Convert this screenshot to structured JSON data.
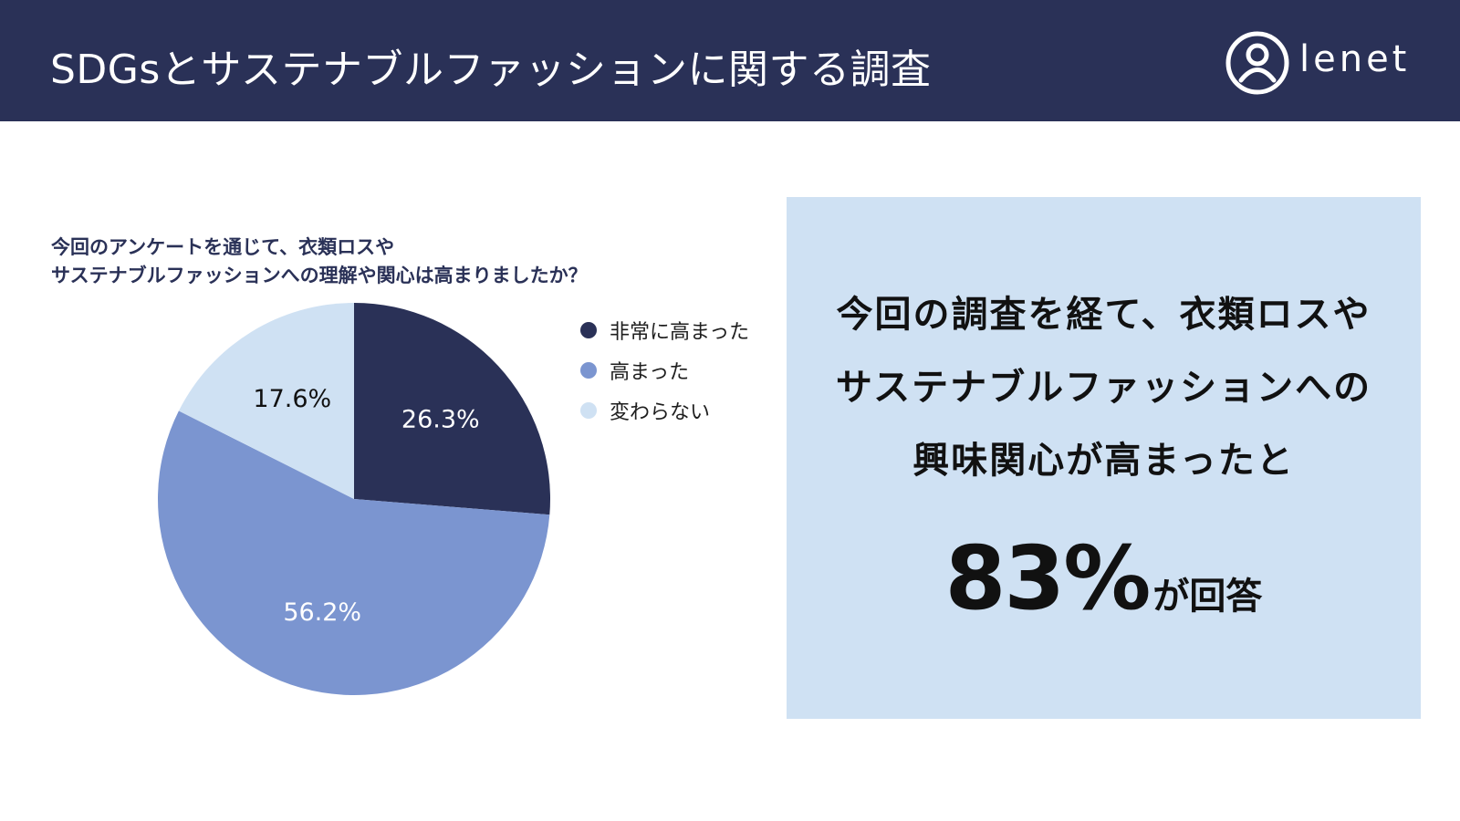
{
  "header": {
    "title": "SDGsとサステナブルファッションに関する調査",
    "logo_text": "lenet",
    "logo_icon": "person-circle-icon"
  },
  "question": {
    "line1": "今回のアンケートを通じて、衣類ロスや",
    "line2": "サステナブルファッションへの理解や関心は高まりましたか？"
  },
  "chart_data": {
    "type": "pie",
    "title": "",
    "categories": [
      "非常に高まった",
      "高まった",
      "変わらない"
    ],
    "values": [
      26.3,
      56.2,
      17.6
    ],
    "labels": [
      "26.3%",
      "56.2%",
      "17.6%"
    ],
    "colors": [
      "#2a3157",
      "#7b95d0",
      "#cfe1f3"
    ],
    "start_angle": "12 o'clock",
    "direction": "clockwise",
    "legend_position": "right"
  },
  "callout": {
    "line1": "今回の調査を経て、衣類ロスや",
    "line2": "サステナブルファッションへの",
    "line3": "興味関心が高まったと",
    "stat_value": "83%",
    "stat_suffix": "が回答"
  },
  "colors": {
    "header_bg": "#2a3157",
    "callout_bg": "#cfe1f3"
  }
}
